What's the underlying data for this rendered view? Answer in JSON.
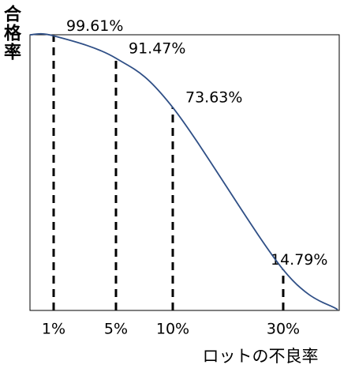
{
  "chart_data": {
    "type": "line",
    "y_label": "合格率",
    "x_label": "ロットの不良率",
    "categories": [
      "1%",
      "5%",
      "10%",
      "30%"
    ],
    "values": [
      99.61,
      91.47,
      73.63,
      14.79
    ],
    "value_labels": [
      "99.61%",
      "91.47%",
      "73.63%",
      "14.79%"
    ],
    "color": "#2f4f86",
    "ylim": [
      0,
      100
    ]
  }
}
